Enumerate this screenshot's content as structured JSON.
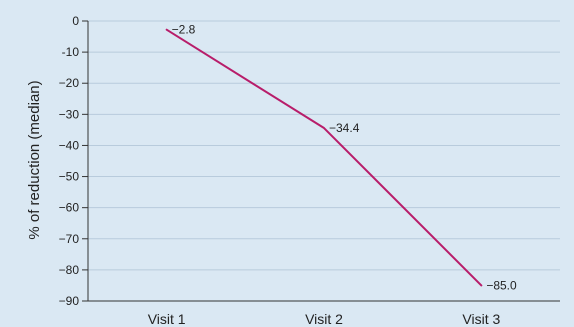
{
  "chart_data": {
    "type": "line",
    "categories": [
      "Visit 1",
      "Visit 2",
      "Visit 3"
    ],
    "series": [
      {
        "values": [
          -2.8,
          -34.4,
          -85.0
        ],
        "labels": [
          "−2.8",
          "−34.4",
          "−85.0"
        ]
      }
    ],
    "ylabel": "% of reduction (median)",
    "ylim": [
      -90,
      0
    ],
    "yticks": [
      0,
      -10,
      -20,
      -30,
      -40,
      -50,
      -60,
      -70,
      -80,
      -90
    ],
    "ytick_labels": [
      "0",
      "-10",
      "−20",
      "−30",
      "−40",
      "−50",
      "−60",
      "−70",
      "−80",
      "−90"
    ],
    "grid": true,
    "line_color": "#b81d6a"
  }
}
